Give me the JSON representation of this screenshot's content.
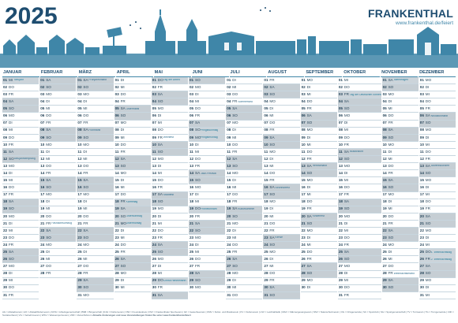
{
  "header": {
    "year": "2025",
    "brand_name": "FRANKENTHAL",
    "brand_url": "www.frankenthal.de/feiert"
  },
  "months": [
    {
      "name": "JANUAR",
      "days": 31,
      "start": 3
    },
    {
      "name": "FEBRUAR",
      "days": 28,
      "start": 6
    },
    {
      "name": "MÄRZ",
      "days": 31,
      "start": 6
    },
    {
      "name": "APRIL",
      "days": 30,
      "start": 2
    },
    {
      "name": "MAI",
      "days": 31,
      "start": 4
    },
    {
      "name": "JUNI",
      "days": 30,
      "start": 0
    },
    {
      "name": "JULI",
      "days": 31,
      "start": 2
    },
    {
      "name": "AUGUST",
      "days": 31,
      "start": 5
    },
    {
      "name": "SEPTEMBER",
      "days": 30,
      "start": 1
    },
    {
      "name": "OKTOBER",
      "days": 31,
      "start": 3
    },
    {
      "name": "NOVEMBER",
      "days": 30,
      "start": 6
    },
    {
      "name": "DEZEMBER",
      "days": 31,
      "start": 1
    }
  ],
  "weekday_abbr": [
    "SO",
    "MO",
    "DI",
    "MI",
    "DO",
    "FR",
    "SA"
  ],
  "holidays": {
    "0-1": "Neujahr",
    "3-18": "Karfreitag",
    "3-20": "Ostersonntag",
    "3-21": "Ostermontag",
    "4-1": "Tag der Arbeit",
    "4-29": "Christi Himmelfahrt",
    "5-8": "Pfingstsonntag",
    "5-9": "Pfingstmontag",
    "5-19": "Fronleichnam",
    "9-3": "Tag der Deutschen Einheit",
    "10-1": "Allerheiligen",
    "11-25": "1. Weihnachtstag",
    "11-26": "2. Weihnachtstag"
  },
  "events": {
    "0-12": "Neujahrsempfang",
    "1-21": "Fasnachtsumzug",
    "2-1": "Frühjahrsmarkt",
    "2-8": "Flohmarkt",
    "3-5": "Ostermarkt",
    "4-9": "Weinfest",
    "4-17": "Stadtfest",
    "5-14": "Jazz-Festival",
    "6-4": "Sommerkino",
    "6-19": "Kultursommer",
    "7-16": "Strohhutfest",
    "7-23": "Kerwe",
    "8-13": "Herbstmarkt",
    "8-20": "Kinderfest",
    "9-11": "Musiknacht",
    "10-28": "Weihnachtsmarkt",
    "11-6": "Nikolausmarkt",
    "11-13": "Adventskonzert"
  },
  "footer": {
    "legend": "AG = Altstadtverein | AO = Altstadtförderverein | ASTA = Arbeitsgemeinschaft | BSB = Bürgerschaft | DJH = Förderverein | FIW = Freundeskreis | FSV = Frankenthaler Sportverein | GF = Gewerbeverein | KMV = Kultur- und Musikverein | KV = Kulturverein | LSV = Leichtathletik | MGV = Männergesangverein | NSV = Naturschutzverein | OG = Ortsgemeinde | SC = Sportclub | SG = Sportgemeinschaft | TV = Turnverein | TG = Turngemeinde | VdK = Sozialverband | VG = Verkehrsverein | WSV = Wassersportverein | ZDF = Zukunftsforum",
    "note": "Aktuelle Änderungen und neue Veranstaltungen finden Sie unter www.frankenthal.de/feiert"
  },
  "colors": {
    "brand": "#1e4d70",
    "accent": "#3f86a8",
    "skyline": "#3f86a8",
    "weekend": "#c6ced4"
  }
}
